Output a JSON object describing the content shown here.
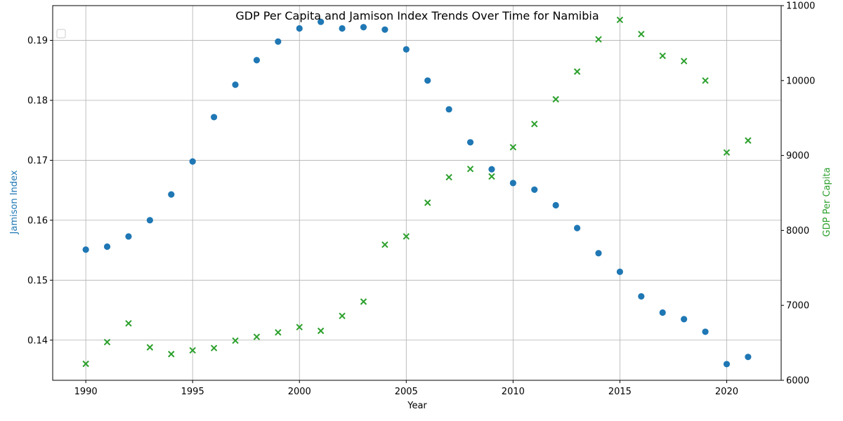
{
  "chart_data": {
    "type": "scatter",
    "title": "GDP Per Capita and Jamison Index Trends Over Time for Namibia",
    "xlabel": "Year",
    "ylabel_left": "Jamison Index",
    "ylabel_right": "GDP Per Capita",
    "xlim": [
      1988.45,
      2022.55
    ],
    "ylim_left": [
      0.1333,
      0.1958
    ],
    "ylim_right": [
      6000,
      11000
    ],
    "x_ticks": [
      1990,
      1995,
      2000,
      2005,
      2010,
      2015,
      2020
    ],
    "x_tick_labels": [
      "1990",
      "1995",
      "2000",
      "2005",
      "2010",
      "2015",
      "2020"
    ],
    "y_left_ticks": [
      0.14,
      0.15,
      0.16,
      0.17,
      0.18,
      0.19
    ],
    "y_left_tick_labels": [
      "0.14",
      "0.15",
      "0.16",
      "0.17",
      "0.18",
      "0.19"
    ],
    "y_right_ticks": [
      6000,
      7000,
      8000,
      9000,
      10000,
      11000
    ],
    "y_right_tick_labels": [
      "6000",
      "7000",
      "8000",
      "9000",
      "10000",
      "11000"
    ],
    "grid": true,
    "legend_position": "top-left",
    "x": [
      1990,
      1991,
      1992,
      1993,
      1994,
      1995,
      1996,
      1997,
      1998,
      1999,
      2000,
      2001,
      2002,
      2003,
      2004,
      2005,
      2006,
      2007,
      2008,
      2009,
      2010,
      2011,
      2012,
      2013,
      2014,
      2015,
      2016,
      2017,
      2018,
      2019,
      2020,
      2021
    ],
    "series": [
      {
        "axis": "left",
        "marker": "circle",
        "color": "#1f77b4",
        "values": [
          0.1551,
          0.1556,
          0.1573,
          0.16,
          0.1643,
          0.1698,
          0.1772,
          0.1826,
          0.1867,
          0.1898,
          0.192,
          0.1931,
          0.192,
          0.1922,
          0.1918,
          0.1885,
          0.1833,
          0.1785,
          0.173,
          0.1685,
          0.1662,
          0.1651,
          0.1625,
          0.1587,
          0.1545,
          0.1514,
          0.1473,
          0.1446,
          0.1435,
          0.1414,
          0.136,
          0.1372
        ]
      },
      {
        "axis": "right",
        "marker": "x",
        "color": "#2ca02c",
        "values": [
          6220,
          6510,
          6760,
          6440,
          6350,
          6400,
          6430,
          6530,
          6580,
          6640,
          6710,
          6660,
          6860,
          7050,
          7810,
          7920,
          8370,
          8710,
          8820,
          8720,
          9110,
          9420,
          9750,
          10120,
          10550,
          10810,
          10620,
          10330,
          10260,
          10000,
          9040,
          9200
        ]
      }
    ]
  }
}
